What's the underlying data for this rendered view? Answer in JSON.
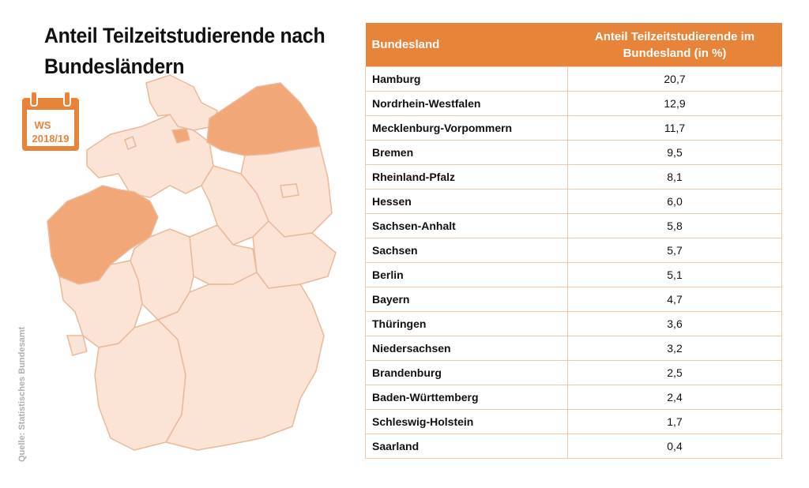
{
  "title": "Anteil Teilzeitstudierende nach Bundesländern",
  "calendar": {
    "term": "WS",
    "year": "2018/19",
    "icon": "calendar-icon",
    "color": "#e8833a"
  },
  "source": "Quelle: Statistisches Bundesamt",
  "colors": {
    "accent": "#e8833a",
    "map_highlight": "#f2a779",
    "map_base": "#fbe3d6",
    "map_border": "#e9b99a",
    "table_border": "#f0c8aa"
  },
  "map": {
    "highlighted_states": [
      "Hamburg",
      "Nordrhein-Westfalen",
      "Mecklenburg-Vorpommern"
    ]
  },
  "chart_data": {
    "type": "table",
    "columns": [
      "Bundesland",
      "Anteil Teilzeitstudierende im Bundesland (in %)"
    ],
    "rows": [
      {
        "state": "Hamburg",
        "value": "20,7"
      },
      {
        "state": "Nordrhein-Westfalen",
        "value": "12,9"
      },
      {
        "state": "Mecklenburg-Vorpommern",
        "value": "11,7"
      },
      {
        "state": "Bremen",
        "value": "9,5"
      },
      {
        "state": "Rheinland-Pfalz",
        "value": "8,1"
      },
      {
        "state": "Hessen",
        "value": "6,0"
      },
      {
        "state": "Sachsen-Anhalt",
        "value": "5,8"
      },
      {
        "state": "Sachsen",
        "value": "5,7"
      },
      {
        "state": "Berlin",
        "value": "5,1"
      },
      {
        "state": "Bayern",
        "value": "4,7"
      },
      {
        "state": "Thüringen",
        "value": "3,6"
      },
      {
        "state": "Niedersachsen",
        "value": "3,2"
      },
      {
        "state": "Brandenburg",
        "value": "2,5"
      },
      {
        "state": "Baden-Württemberg",
        "value": "2,4"
      },
      {
        "state": "Schleswig-Holstein",
        "value": "1,7"
      },
      {
        "state": "Saarland",
        "value": "0,4"
      }
    ]
  }
}
